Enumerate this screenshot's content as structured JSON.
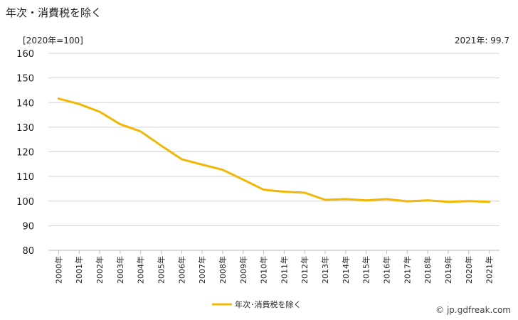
{
  "title": "年次・消費税を除く",
  "unit_label": "[2020年=100]",
  "latest_label": "2021年: 99.7",
  "credit": "© jp.gdfreak.com",
  "colors": {
    "series": "#F2B705",
    "grid": "#D3D3D3",
    "axis": "#BBBBBB"
  },
  "chart_data": {
    "type": "line",
    "title": "年次・消費税を除く",
    "ylim": [
      80,
      160
    ],
    "yticks": [
      80,
      90,
      100,
      110,
      120,
      130,
      140,
      150,
      160
    ],
    "grid": true,
    "legend_position": "bottom-center",
    "categories": [
      "2000年",
      "2001年",
      "2002年",
      "2003年",
      "2004年",
      "2005年",
      "2006年",
      "2007年",
      "2008年",
      "2009年",
      "2010年",
      "2011年",
      "2012年",
      "2013年",
      "2014年",
      "2015年",
      "2016年",
      "2017年",
      "2018年",
      "2019年",
      "2020年",
      "2021年"
    ],
    "series": [
      {
        "name": "年次･消費税を除く",
        "values": [
          141.6,
          139.4,
          136.3,
          131.2,
          128.3,
          122.5,
          117.0,
          114.8,
          112.7,
          108.7,
          104.6,
          103.8,
          103.4,
          100.5,
          100.8,
          100.3,
          100.8,
          99.9,
          100.3,
          99.7,
          100.0,
          99.7
        ]
      }
    ]
  }
}
